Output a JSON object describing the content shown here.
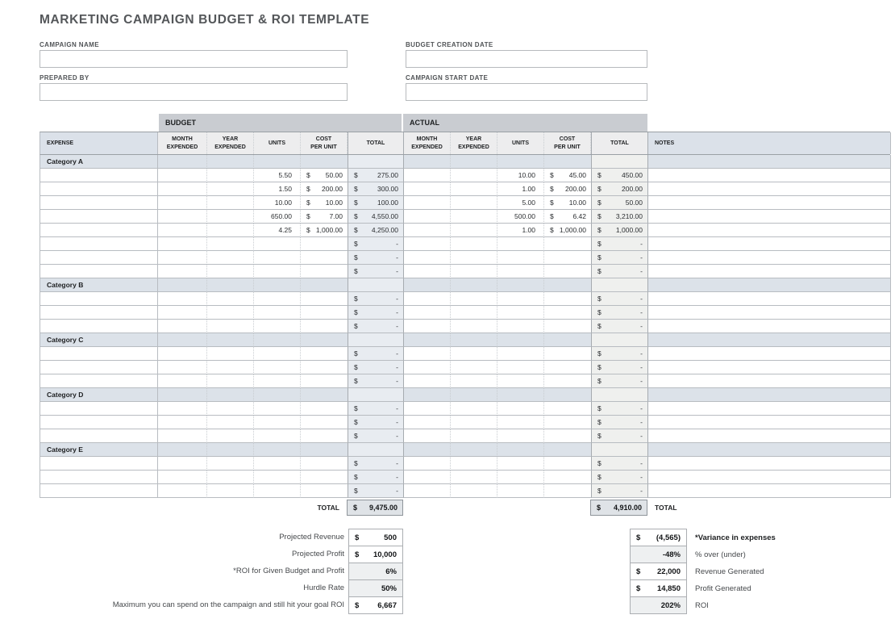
{
  "title": "MARKETING CAMPAIGN BUDGET & ROI TEMPLATE",
  "form": {
    "fields": [
      {
        "id": "campaign-name",
        "label": "CAMPAIGN NAME",
        "value": ""
      },
      {
        "id": "budget-creation-date",
        "label": "BUDGET CREATION DATE",
        "value": ""
      },
      {
        "id": "prepared-by",
        "label": "PREPARED BY",
        "value": ""
      },
      {
        "id": "campaign-start-date",
        "label": "CAMPAIGN START DATE",
        "value": ""
      }
    ]
  },
  "table": {
    "budget_group_label": "BUDGET",
    "actual_group_label": "ACTUAL",
    "currency_symbol": "$",
    "column_headers": [
      "EXPENSE",
      "MONTH\nEXPENDED",
      "YEAR\nEXPENDED",
      "UNITS",
      "COST\nPER UNIT",
      "TOTAL",
      "MONTH\nEXPENDED",
      "YEAR\nEXPENDED",
      "UNITS",
      "COST\nPER UNIT",
      "TOTAL",
      "NOTES"
    ],
    "categories": [
      {
        "name": "Category A",
        "rows": [
          {
            "budget": {
              "units": "5.50",
              "cost_per_unit": "50.00",
              "total": "275.00"
            },
            "actual": {
              "units": "10.00",
              "cost_per_unit": "45.00",
              "total": "450.00"
            },
            "notes": ""
          },
          {
            "budget": {
              "units": "1.50",
              "cost_per_unit": "200.00",
              "total": "300.00"
            },
            "actual": {
              "units": "1.00",
              "cost_per_unit": "200.00",
              "total": "200.00"
            },
            "notes": ""
          },
          {
            "budget": {
              "units": "10.00",
              "cost_per_unit": "10.00",
              "total": "100.00"
            },
            "actual": {
              "units": "5.00",
              "cost_per_unit": "10.00",
              "total": "50.00"
            },
            "notes": ""
          },
          {
            "budget": {
              "units": "650.00",
              "cost_per_unit": "7.00",
              "total": "4,550.00"
            },
            "actual": {
              "units": "500.00",
              "cost_per_unit": "6.42",
              "total": "3,210.00"
            },
            "notes": ""
          },
          {
            "budget": {
              "units": "4.25",
              "cost_per_unit": "1,000.00",
              "total": "4,250.00"
            },
            "actual": {
              "units": "1.00",
              "cost_per_unit": "1,000.00",
              "total": "1,000.00"
            },
            "notes": ""
          },
          {
            "budget": {
              "units": "",
              "cost_per_unit": "",
              "total": "-"
            },
            "actual": {
              "units": "",
              "cost_per_unit": "",
              "total": "-"
            },
            "notes": ""
          },
          {
            "budget": {
              "units": "",
              "cost_per_unit": "",
              "total": "-"
            },
            "actual": {
              "units": "",
              "cost_per_unit": "",
              "total": "-"
            },
            "notes": ""
          },
          {
            "budget": {
              "units": "",
              "cost_per_unit": "",
              "total": "-"
            },
            "actual": {
              "units": "",
              "cost_per_unit": "",
              "total": "-"
            },
            "notes": ""
          }
        ]
      },
      {
        "name": "Category B",
        "rows": [
          {
            "budget": {
              "units": "",
              "cost_per_unit": "",
              "total": "-"
            },
            "actual": {
              "units": "",
              "cost_per_unit": "",
              "total": "-"
            },
            "notes": ""
          },
          {
            "budget": {
              "units": "",
              "cost_per_unit": "",
              "total": "-"
            },
            "actual": {
              "units": "",
              "cost_per_unit": "",
              "total": "-"
            },
            "notes": ""
          },
          {
            "budget": {
              "units": "",
              "cost_per_unit": "",
              "total": "-"
            },
            "actual": {
              "units": "",
              "cost_per_unit": "",
              "total": "-"
            },
            "notes": ""
          }
        ]
      },
      {
        "name": "Category C",
        "rows": [
          {
            "budget": {
              "units": "",
              "cost_per_unit": "",
              "total": "-"
            },
            "actual": {
              "units": "",
              "cost_per_unit": "",
              "total": "-"
            },
            "notes": ""
          },
          {
            "budget": {
              "units": "",
              "cost_per_unit": "",
              "total": "-"
            },
            "actual": {
              "units": "",
              "cost_per_unit": "",
              "total": "-"
            },
            "notes": ""
          },
          {
            "budget": {
              "units": "",
              "cost_per_unit": "",
              "total": "-"
            },
            "actual": {
              "units": "",
              "cost_per_unit": "",
              "total": "-"
            },
            "notes": ""
          }
        ]
      },
      {
        "name": "Category D",
        "rows": [
          {
            "budget": {
              "units": "",
              "cost_per_unit": "",
              "total": "-"
            },
            "actual": {
              "units": "",
              "cost_per_unit": "",
              "total": "-"
            },
            "notes": ""
          },
          {
            "budget": {
              "units": "",
              "cost_per_unit": "",
              "total": "-"
            },
            "actual": {
              "units": "",
              "cost_per_unit": "",
              "total": "-"
            },
            "notes": ""
          },
          {
            "budget": {
              "units": "",
              "cost_per_unit": "",
              "total": "-"
            },
            "actual": {
              "units": "",
              "cost_per_unit": "",
              "total": "-"
            },
            "notes": ""
          }
        ]
      },
      {
        "name": "Category E",
        "rows": [
          {
            "budget": {
              "units": "",
              "cost_per_unit": "",
              "total": "-"
            },
            "actual": {
              "units": "",
              "cost_per_unit": "",
              "total": "-"
            },
            "notes": ""
          },
          {
            "budget": {
              "units": "",
              "cost_per_unit": "",
              "total": "-"
            },
            "actual": {
              "units": "",
              "cost_per_unit": "",
              "total": "-"
            },
            "notes": ""
          },
          {
            "budget": {
              "units": "",
              "cost_per_unit": "",
              "total": "-"
            },
            "actual": {
              "units": "",
              "cost_per_unit": "",
              "total": "-"
            },
            "notes": ""
          }
        ]
      }
    ],
    "grand_total": {
      "label": "TOTAL",
      "budget_total": "9,475.00",
      "actual_total": "4,910.00",
      "actual_label": "TOTAL"
    }
  },
  "summary_left": [
    {
      "label": "Projected Revenue",
      "currency": "$",
      "value": "500"
    },
    {
      "label": "Projected Profit",
      "currency": "$",
      "value": "10,000"
    },
    {
      "label": "*ROI for Given Budget and Profit",
      "currency": "",
      "value": "6%"
    },
    {
      "label": "Hurdle Rate",
      "currency": "",
      "value": "50%"
    },
    {
      "label": "Maximum you can spend on the campaign and still hit your goal ROI",
      "currency": "$",
      "value": "6,667"
    }
  ],
  "summary_right": [
    {
      "currency": "$",
      "value": "(4,565)",
      "label": "*Variance in expenses"
    },
    {
      "currency": "",
      "value": "-48%",
      "label": "% over (under)"
    },
    {
      "currency": "$",
      "value": "22,000",
      "label": "Revenue Generated"
    },
    {
      "currency": "$",
      "value": "14,850",
      "label": "Profit Generated"
    },
    {
      "currency": "",
      "value": "202%",
      "label": "ROI"
    }
  ],
  "colors": {
    "band_bg": "#c9ccd1",
    "column_header_bg": "#ededee",
    "blue_header_bg": "#dbe1e9",
    "category_row_bg": "#dce2e9",
    "budget_total_bg": "#e8ecf1",
    "actual_total_bg": "#eff0ee",
    "grand_total_bg": "#dfe3e7",
    "shaded_value_bg": "#eef0f1",
    "grid_line": "#b8bcc1",
    "strong_line": "#9aa0a5",
    "title_text": "#54575a"
  }
}
